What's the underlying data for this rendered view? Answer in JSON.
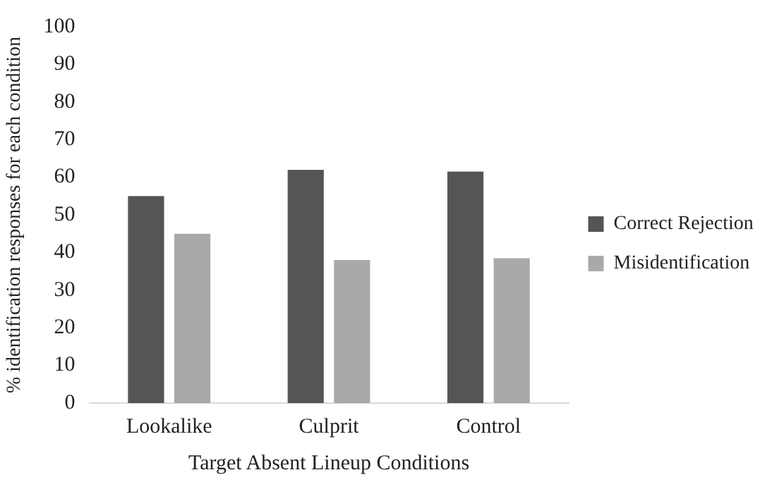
{
  "chart_data": {
    "type": "bar",
    "xlabel": "Target Absent Lineup Conditions",
    "ylabel": "% identification responses for each condition",
    "categories": [
      "Lookalike",
      "Culprit",
      "Control"
    ],
    "series": [
      {
        "name": "Correct Rejection",
        "color": "#555555",
        "values": [
          55,
          62,
          61.5
        ]
      },
      {
        "name": "Misidentification",
        "color": "#a9a9a9",
        "values": [
          45,
          38,
          38.5
        ]
      }
    ],
    "ylim": [
      0,
      100
    ],
    "yticks": [
      0,
      10,
      20,
      30,
      40,
      50,
      60,
      70,
      80,
      90,
      100
    ],
    "grid": false,
    "legend": "right"
  }
}
